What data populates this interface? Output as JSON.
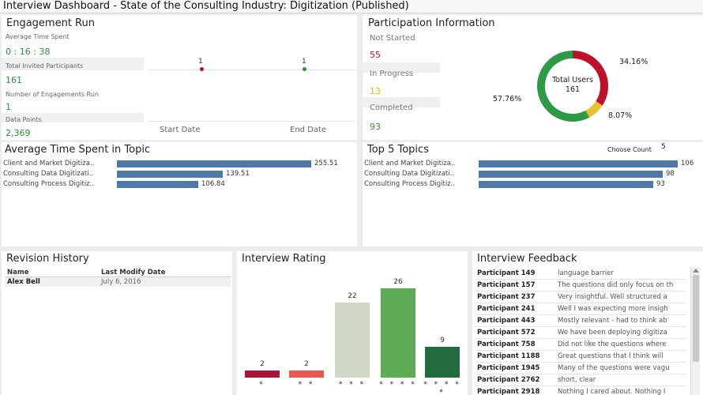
{
  "window": {
    "title": "Interview Dashboard - State of the Consulting Industry: Digitization (Published)"
  },
  "engagement": {
    "title": "Engagement Run",
    "avg_time_label": "Average Time Spent",
    "avg_time_value": "0 : 16 : 38",
    "invited_label": "Total Invited Participants",
    "invited_value": "161",
    "engagements_label": "Number of Engagements Run",
    "engagements_value": "1",
    "datapoints_label": "Data Points",
    "datapoints_value": "2,369",
    "start_count": "1",
    "end_count": "1",
    "start_label": "Start Date",
    "end_label": "End Date",
    "colors": {
      "start_dot": "#b5122f",
      "end_dot": "#2e8b3d"
    }
  },
  "participation": {
    "title": "Participation Information",
    "not_started_label": "Not Started",
    "not_started_value": "55",
    "in_progress_label": "In Progress",
    "in_progress_value": "13",
    "completed_label": "Completed",
    "completed_value": "93",
    "donut_center_label": "Total Users",
    "donut_center_value": "161",
    "slices": [
      {
        "label": "34.16%",
        "value": 34.16,
        "color": "#c0102a"
      },
      {
        "label": "8.07%",
        "value": 8.07,
        "color": "#e8c230"
      },
      {
        "label": "57.76%",
        "value": 57.76,
        "color": "#2e9a45"
      }
    ],
    "colors": {
      "not_started": "#c0102a",
      "in_progress": "#e8b800",
      "completed": "#2e8b3d"
    }
  },
  "avg_topic": {
    "title": "Average Time Spent in Topic",
    "rows": [
      {
        "category": "Client and Market Digitiza..",
        "value": 255.51,
        "label": "255.51"
      },
      {
        "category": "Consulting Data Digitizati..",
        "value": 139.51,
        "label": "139.51"
      },
      {
        "category": "Consulting Process Digitiz..",
        "value": 106.84,
        "label": "106.84"
      }
    ]
  },
  "top_topics": {
    "title": "Top 5 Topics",
    "choose_label": "Choose Count",
    "choose_value": "5",
    "rows": [
      {
        "category": "Client and Market Digitiza..",
        "value": 106,
        "label": "106"
      },
      {
        "category": "Consulting Data Digitizati..",
        "value": 98,
        "label": "98"
      },
      {
        "category": "Consulting Process Digitiz..",
        "value": 93,
        "label": "93"
      }
    ]
  },
  "revision": {
    "title": "Revision History",
    "col_name": "Name",
    "col_date": "Last Modify Date",
    "rows": [
      {
        "name": "Alex Bell",
        "date": "July 6, 2016"
      }
    ]
  },
  "chart_data": {
    "type": "bar",
    "title": "Interview Rating",
    "categories": [
      "*",
      "* *",
      "* * *",
      "* * * *",
      "* * * * *"
    ],
    "values": [
      2,
      2,
      22,
      26,
      9
    ],
    "colors": [
      "#a8163a",
      "#e8584f",
      "#cfd9c6",
      "#5eab55",
      "#226b3c"
    ],
    "ylim": [
      0,
      30
    ]
  },
  "feedback": {
    "title": "Interview Feedback",
    "rows": [
      {
        "name": "Participant 149",
        "text": "language barrier"
      },
      {
        "name": "Participant 157",
        "text": "The questions did only focus on th"
      },
      {
        "name": "Participant 237",
        "text": "Very insightful. Well structured a"
      },
      {
        "name": "Participant 241",
        "text": "Well I was expecting more insigh"
      },
      {
        "name": "Participant 443",
        "text": "Mostly relevant - had to think ab"
      },
      {
        "name": "Participant 572",
        "text": "We have been deploying digitiza"
      },
      {
        "name": "Participant 758",
        "text": "Did not like the questions where"
      },
      {
        "name": "Participant 1188",
        "text": "Great questions that I think will"
      },
      {
        "name": "Participant 1945",
        "text": "Many of the questions were vagu"
      },
      {
        "name": "Participant 2762",
        "text": "short, clear"
      },
      {
        "name": "Participant 2918",
        "text": "Nothing I cared about. Nothing I"
      }
    ]
  }
}
